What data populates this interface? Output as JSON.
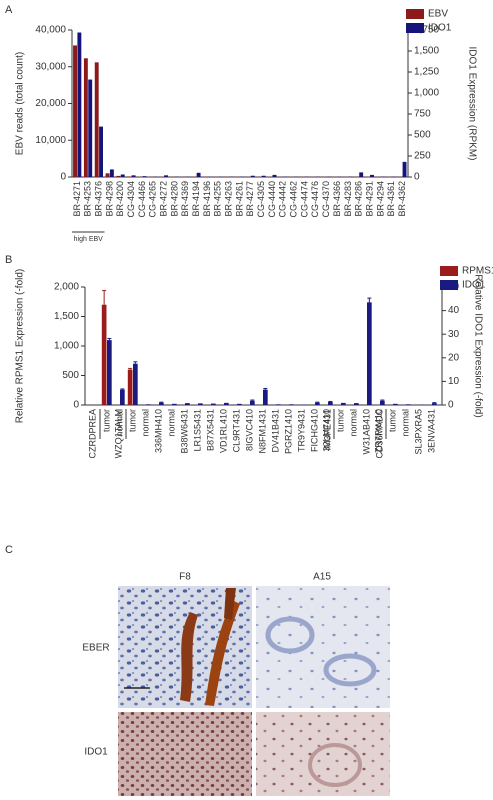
{
  "chart_data": [
    {
      "type": "bar",
      "ylabel": "EBV reads (total count)",
      "y2label": "IDO1 Expression (RPKM)",
      "categories": [
        "BR-4271",
        "BR-4253",
        "BR-4376",
        "BR-4298",
        "BR-4200",
        "CG-4304",
        "CG-4466",
        "CG-4265",
        "BR-4272",
        "BR-4280",
        "BR-4369",
        "BR-4194",
        "BR-4196",
        "BR-4255",
        "BR-4263",
        "BR-4261",
        "BR-4277",
        "CG-4305",
        "CG-4440",
        "CG-4442",
        "CG-4462",
        "CG-4474",
        "CG-4476",
        "CG-4370",
        "BR-4366",
        "BR-4283",
        "BR-4286",
        "BR-4291",
        "BR-4294",
        "BR-4361",
        "BR-4362"
      ],
      "series": [
        {
          "name": "EBV",
          "color": "#8b1a1a",
          "values": [
            35800,
            32300,
            31200,
            1000,
            300,
            150,
            100,
            100,
            100,
            100,
            100,
            100,
            100,
            100,
            100,
            100,
            100,
            100,
            100,
            100,
            100,
            100,
            100,
            100,
            100,
            100,
            100,
            100,
            100,
            100,
            100
          ]
        },
        {
          "name": "IDO1",
          "color": "#14147a",
          "axis": "y2",
          "values": [
            1720,
            1160,
            600,
            90,
            30,
            20,
            10,
            5,
            20,
            5,
            5,
            50,
            5,
            5,
            5,
            5,
            15,
            15,
            25,
            5,
            5,
            5,
            5,
            5,
            5,
            5,
            55,
            25,
            5,
            5,
            180
          ]
        }
      ],
      "ylim": [
        0,
        40000
      ],
      "yticks": [
        0,
        {
          "value": 10000,
          "label": "10,000"
        },
        {
          "value": 20000,
          "label": "20,000"
        },
        {
          "value": 30000,
          "label": "30,000"
        },
        {
          "value": 40000,
          "label": "40,000"
        }
      ],
      "y2lim": [
        0,
        1750
      ],
      "y2ticks": [
        0,
        250,
        500,
        750,
        {
          "value": 1000,
          "label": "1,000"
        },
        {
          "value": 1250,
          "label": "1,250"
        },
        {
          "value": 1500,
          "label": "1,500"
        },
        {
          "value": 1750,
          "label": "1,750"
        }
      ],
      "grid": false,
      "legend": "upper right",
      "annotation": {
        "text": "high EBV",
        "categories": [
          "BR-4271",
          "BR-4253",
          "BR-4376"
        ]
      }
    },
    {
      "type": "bar",
      "ylabel": "Relative RPMS1 Expression (-fold)",
      "y2label": "Relative IDO1 Expression (-fold)",
      "categories": [
        "tumor",
        "normal",
        "tumor",
        "normal",
        "336MH410",
        "normal",
        "B38W6431",
        "LR1S5431",
        "B87X5431",
        "VD1RL410",
        "CL9RT431",
        "8IGVC410",
        "N8FM1431",
        "DV41B431",
        "PGRZ1410",
        "TR9Y9431",
        "FICHG410",
        "IM3FE431",
        "tumor",
        "normal",
        "W31AB410",
        "CD36MADC",
        "tumor",
        "normal",
        "SL3PXRA5",
        "3ENVA431"
      ],
      "group_labels": [
        "CZRDPREA",
        null,
        "WZQ1TALM",
        null,
        null,
        null,
        null,
        null,
        null,
        null,
        null,
        null,
        null,
        null,
        null,
        null,
        null,
        null,
        "32LM7410",
        null,
        null,
        null,
        "ZR7PX410",
        null,
        null,
        null
      ],
      "series": [
        {
          "name": "RPMS1",
          "color": "#9b1c1c",
          "values": [
            1700,
            0,
            600,
            0,
            0,
            0,
            0,
            0,
            0,
            0,
            0,
            0,
            0,
            0,
            0,
            0,
            0,
            0,
            0,
            0,
            0,
            0,
            0,
            0,
            0,
            0
          ],
          "errors": [
            240,
            0,
            20,
            0,
            0,
            0,
            0,
            0,
            0,
            0,
            0,
            0,
            0,
            0,
            0,
            0,
            0,
            0,
            0,
            0,
            0,
            0,
            0,
            0,
            0,
            0
          ]
        },
        {
          "name": "IDO1",
          "color": "#1a1a80",
          "axis": "y2",
          "values": [
            27.5,
            6.5,
            17.5,
            0.3,
            1,
            0.5,
            0.8,
            0.7,
            0.6,
            0.9,
            0.5,
            1.8,
            6.5,
            0.3,
            0.3,
            0.2,
            1,
            1.3,
            0.9,
            0.8,
            43.5,
            1.8,
            0.5,
            0.3,
            0.2,
            0.8
          ],
          "errors": [
            0.7,
            0.3,
            0.8,
            0,
            0.2,
            0,
            0,
            0,
            0,
            0,
            0,
            0.3,
            0.5,
            0,
            0,
            0,
            0.2,
            0.2,
            0,
            0,
            1.8,
            0.3,
            0,
            0,
            0,
            0.2
          ]
        }
      ],
      "ylim": [
        0,
        2000
      ],
      "yticks": [
        0,
        500,
        {
          "value": 1000,
          "label": "1,000"
        },
        {
          "value": 1500,
          "label": "1,500"
        },
        {
          "value": 2000,
          "label": "2,000"
        }
      ],
      "y2lim": [
        0,
        50
      ],
      "y2ticks": [
        0,
        10,
        20,
        30,
        40,
        50
      ],
      "grid": false,
      "legend": "upper right"
    }
  ],
  "panel_labels": [
    "A",
    "B",
    "C"
  ],
  "micrographs": {
    "columns": [
      "F8",
      "A15"
    ],
    "rows": [
      "EBER",
      "IDO1"
    ]
  }
}
